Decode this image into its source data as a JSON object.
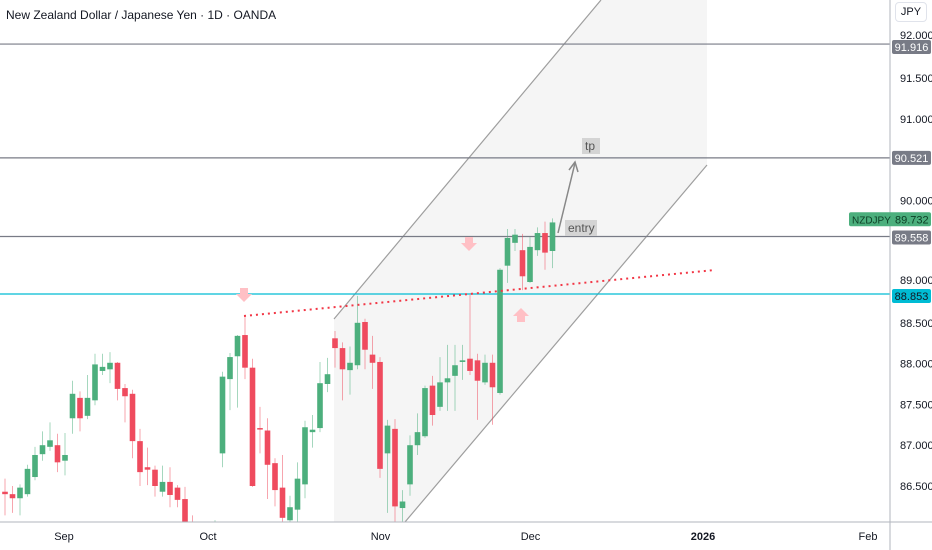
{
  "header": {
    "title": "New Zealand Dollar / Japanese Yen · 1D · OANDA",
    "currency_button": "JPY"
  },
  "chart_data": {
    "type": "candlestick",
    "title": "New Zealand Dollar / Japanese Yen · 1D · OANDA",
    "symbol": "NZDJPY",
    "last_price": "89.732",
    "ylim": [
      86.15,
      92.1
    ],
    "y_ticks": [
      "92.000",
      "91.500",
      "91.000",
      "90.000",
      "89.000",
      "88.500",
      "88.000",
      "87.500",
      "87.000",
      "86.500"
    ],
    "y_tick_values": [
      92.0,
      91.5,
      91.0,
      90.0,
      89.0,
      88.5,
      88.0,
      87.5,
      87.0,
      86.5
    ],
    "x_ticks": [
      {
        "label": "Sep",
        "bold": false
      },
      {
        "label": "Oct",
        "bold": false
      },
      {
        "label": "Nov",
        "bold": false
      },
      {
        "label": "Dec",
        "bold": false
      },
      {
        "label": "2026",
        "bold": true
      },
      {
        "label": "Feb",
        "bold": false
      }
    ],
    "x_tick_bar_index": [
      4,
      26,
      49,
      69,
      92,
      114
    ],
    "candles_ohlc": [
      [
        86.43,
        86.59,
        86.14,
        86.4
      ],
      [
        86.4,
        86.5,
        86.17,
        86.35
      ],
      [
        86.35,
        86.52,
        86.14,
        86.48
      ],
      [
        86.4,
        86.76,
        86.37,
        86.71
      ],
      [
        86.61,
        86.98,
        86.57,
        86.88
      ],
      [
        86.89,
        87.17,
        86.81,
        87.0
      ],
      [
        86.98,
        87.28,
        86.93,
        87.06
      ],
      [
        87.0,
        87.14,
        86.67,
        86.79
      ],
      [
        86.81,
        87.15,
        86.63,
        86.88
      ],
      [
        87.33,
        87.79,
        87.14,
        87.63
      ],
      [
        87.58,
        87.66,
        87.17,
        87.33
      ],
      [
        87.36,
        87.86,
        87.32,
        87.58
      ],
      [
        87.55,
        88.12,
        87.49,
        87.99
      ],
      [
        87.91,
        88.12,
        87.86,
        87.96
      ],
      [
        87.93,
        88.14,
        87.76,
        88.01
      ],
      [
        88.01,
        88.02,
        87.55,
        87.69
      ],
      [
        87.7,
        87.75,
        87.28,
        87.6
      ],
      [
        87.63,
        87.68,
        86.84,
        87.05
      ],
      [
        87.05,
        87.2,
        86.5,
        86.67
      ],
      [
        86.73,
        86.97,
        86.51,
        86.7
      ],
      [
        86.7,
        86.75,
        86.37,
        86.5
      ],
      [
        86.43,
        86.75,
        86.37,
        86.55
      ],
      [
        86.55,
        86.73,
        86.24,
        86.39
      ],
      [
        86.48,
        86.51,
        86.24,
        86.33
      ],
      [
        86.34,
        86.49,
        85.9,
        86.02
      ],
      [
        86.02,
        86.14,
        85.78,
        85.84
      ],
      [
        85.84,
        85.9,
        85.59,
        85.74
      ],
      [
        85.72,
        85.96,
        85.59,
        85.84
      ],
      [
        85.86,
        86.08,
        85.78,
        85.99
      ],
      [
        86.9,
        87.9,
        86.73,
        87.84
      ],
      [
        87.81,
        88.13,
        87.43,
        88.08
      ],
      [
        88.09,
        88.35,
        87.46,
        88.34
      ],
      [
        88.35,
        88.58,
        87.81,
        87.95
      ],
      [
        87.95,
        88.06,
        86.49,
        86.5
      ],
      [
        87.21,
        87.47,
        86.9,
        87.2
      ],
      [
        87.18,
        87.33,
        86.34,
        86.76
      ],
      [
        86.78,
        86.84,
        86.25,
        86.45
      ],
      [
        86.48,
        86.88,
        86.05,
        86.11
      ],
      [
        86.08,
        86.38,
        86.06,
        86.24
      ],
      [
        86.21,
        86.79,
        86.06,
        86.59
      ],
      [
        86.52,
        87.3,
        86.35,
        87.22
      ],
      [
        87.16,
        87.37,
        86.97,
        87.19
      ],
      [
        87.21,
        88.02,
        87.16,
        87.76
      ],
      [
        87.75,
        88.07,
        87.65,
        87.87
      ],
      [
        88.31,
        88.4,
        87.95,
        88.19
      ],
      [
        88.19,
        88.26,
        87.55,
        87.93
      ],
      [
        87.92,
        88.21,
        87.62,
        88.01
      ],
      [
        87.98,
        88.83,
        87.93,
        88.5
      ],
      [
        88.51,
        88.55,
        87.93,
        88.17
      ],
      [
        88.11,
        88.34,
        87.69,
        88.01
      ],
      [
        88.02,
        88.08,
        86.6,
        86.71
      ],
      [
        86.9,
        87.31,
        86.17,
        87.24
      ],
      [
        87.2,
        87.32,
        86.06,
        86.25
      ],
      [
        86.23,
        86.45,
        86.06,
        86.31
      ],
      [
        86.52,
        87.12,
        86.38,
        87.0
      ],
      [
        87.0,
        87.39,
        86.88,
        87.16
      ],
      [
        87.11,
        87.73,
        87.09,
        87.7
      ],
      [
        87.73,
        87.85,
        87.24,
        87.37
      ],
      [
        87.47,
        88.08,
        87.42,
        87.77
      ],
      [
        87.77,
        88.23,
        87.42,
        87.82
      ],
      [
        87.85,
        88.23,
        87.42,
        87.98
      ],
      [
        88.02,
        88.23,
        87.8,
        88.04
      ],
      [
        88.06,
        88.84,
        87.86,
        87.91
      ],
      [
        88.04,
        88.12,
        87.31,
        87.79
      ],
      [
        87.77,
        88.11,
        87.74,
        88.01
      ],
      [
        88.01,
        88.11,
        87.25,
        87.71
      ],
      [
        87.64,
        89.17,
        87.62,
        89.15
      ],
      [
        89.2,
        89.65,
        88.99,
        89.54
      ],
      [
        89.48,
        89.65,
        89.38,
        89.58
      ],
      [
        89.39,
        89.59,
        88.9,
        89.07
      ],
      [
        89.0,
        89.55,
        88.99,
        89.43
      ],
      [
        89.39,
        89.67,
        89.32,
        89.6
      ],
      [
        89.6,
        89.74,
        89.15,
        89.36
      ],
      [
        89.38,
        89.78,
        89.17,
        89.73
      ]
    ],
    "horizontal_levels": [
      {
        "price": 91.916,
        "label": "91.916",
        "color": "#787b86"
      },
      {
        "price": 90.521,
        "label": "90.521",
        "color": "#787b86"
      },
      {
        "price": 89.558,
        "label": "89.558",
        "color": "#787b86"
      },
      {
        "price": 88.853,
        "label": "88.853",
        "color": "#00bcd4"
      }
    ],
    "annotations": {
      "tp": "tp",
      "entry": "entry"
    },
    "colors": {
      "up": "#4caf7d",
      "down": "#ef4b5e",
      "trendline": "#f23645",
      "channel": "#9e9e9e",
      "fill": "#f5f5f5",
      "marker": "#ffc0c5",
      "last": "#4caf7d"
    }
  }
}
